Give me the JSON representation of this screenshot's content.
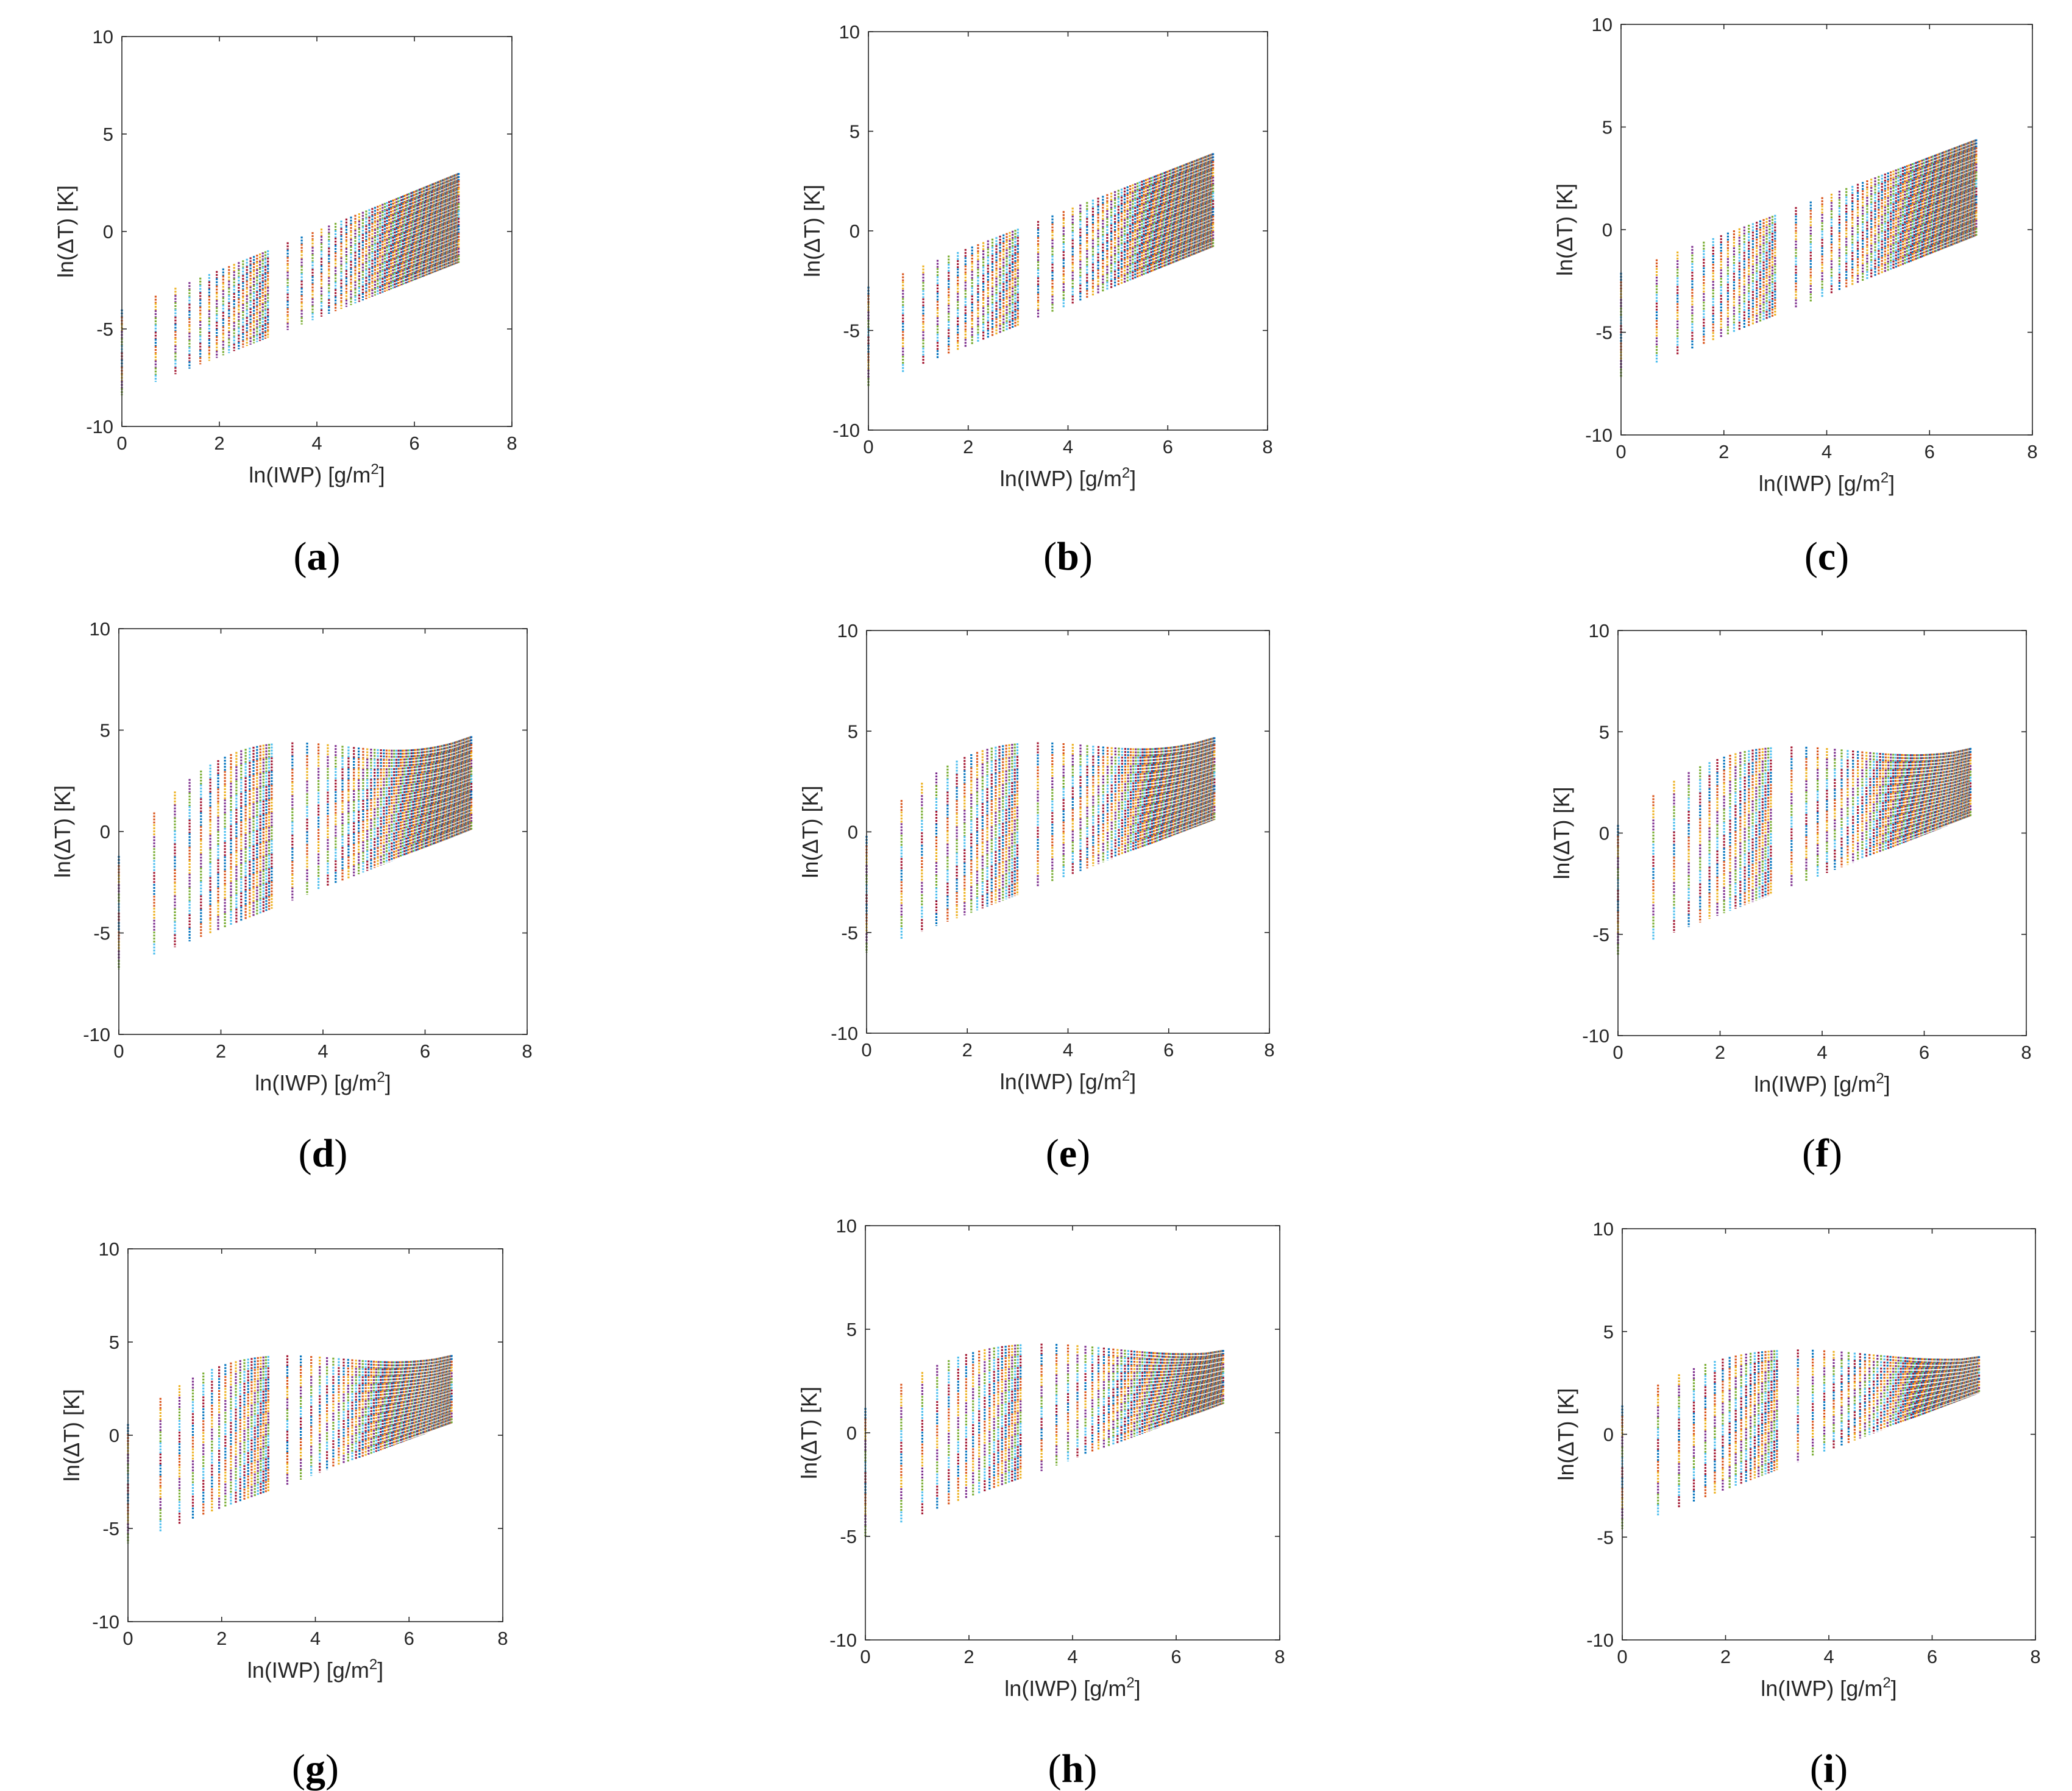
{
  "figure": {
    "palette": [
      "#0072BD",
      "#D95319",
      "#EDB120",
      "#7E2F8E",
      "#77AC30",
      "#4DBEEE",
      "#A2142F"
    ],
    "x_sample_points": [
      0.0,
      0.693,
      1.099,
      1.386,
      1.609,
      1.792,
      1.946,
      2.079,
      2.197,
      2.303,
      2.398,
      2.485,
      2.565,
      2.639,
      2.708,
      2.773,
      2.833,
      2.89,
      2.944,
      2.996,
      3.401,
      3.689,
      3.912,
      4.094,
      4.248,
      4.382,
      4.5,
      4.605,
      4.7,
      4.787,
      4.868,
      4.942,
      5.011,
      5.075,
      5.136,
      5.193,
      5.247,
      5.298,
      5.347,
      5.394,
      5.438,
      5.481,
      5.521,
      5.561,
      5.598,
      5.635,
      5.67,
      5.704,
      5.737,
      5.768,
      5.799,
      5.829,
      5.858,
      5.886,
      5.914,
      5.94,
      5.966,
      5.991,
      6.015,
      6.04,
      6.063,
      6.086,
      6.108,
      6.13,
      6.151,
      6.172,
      6.193,
      6.213,
      6.232,
      6.252,
      6.271,
      6.289,
      6.307,
      6.325,
      6.342,
      6.359,
      6.376,
      6.393,
      6.409,
      6.425,
      6.441,
      6.456,
      6.471,
      6.486,
      6.501,
      6.516,
      6.53,
      6.544,
      6.558,
      6.571,
      6.585,
      6.598,
      6.611,
      6.624,
      6.637,
      6.649,
      6.661,
      6.673,
      6.685,
      6.697,
      6.709,
      6.72,
      6.732,
      6.743,
      6.754,
      6.765,
      6.776,
      6.786,
      6.797,
      6.807,
      6.817,
      6.827,
      6.837,
      6.847,
      6.857,
      6.867,
      6.877,
      6.886,
      6.896,
      6.908
    ]
  },
  "chart_data": [
    {
      "id": "a",
      "type": "scatter",
      "caption_letter": "a",
      "xlabel": "ln(IWP) [g/m",
      "xlabel_sup": "2",
      "xlabel_end": "]",
      "ylabel": "ln(ΔT) [K]",
      "xlim": [
        0,
        8
      ],
      "ylim": [
        -10,
        10
      ],
      "x_ticks": [
        "0",
        "2",
        "4",
        "6",
        "8"
      ],
      "y_ticks": [
        "-10",
        "-5",
        "0",
        "5",
        "10"
      ],
      "envelope": {
        "lower_start": -8.4,
        "lower_end": -1.6,
        "upper_start": -4.0,
        "upper_end": 3.0,
        "upper_peak": null
      }
    },
    {
      "id": "b",
      "type": "scatter",
      "caption_letter": "b",
      "xlabel": "ln(IWP) [g/m",
      "xlabel_sup": "2",
      "xlabel_end": "]",
      "ylabel": "ln(ΔT) [K]",
      "xlim": [
        0,
        8
      ],
      "ylim": [
        -10,
        10
      ],
      "x_ticks": [
        "0",
        "2",
        "4",
        "6",
        "8"
      ],
      "y_ticks": [
        "-10",
        "-5",
        "0",
        "5",
        "10"
      ],
      "envelope": {
        "lower_start": -7.8,
        "lower_end": -0.8,
        "upper_start": -2.8,
        "upper_end": 3.9,
        "upper_peak": null
      }
    },
    {
      "id": "c",
      "type": "scatter",
      "caption_letter": "c",
      "xlabel": "ln(IWP) [g/m",
      "xlabel_sup": "2",
      "xlabel_end": "]",
      "ylabel": "ln(ΔT) [K]",
      "xlim": [
        0,
        8
      ],
      "ylim": [
        -10,
        10
      ],
      "x_ticks": [
        "0",
        "2",
        "4",
        "6",
        "8"
      ],
      "y_ticks": [
        "-10",
        "-5",
        "0",
        "5",
        "10"
      ],
      "envelope": {
        "lower_start": -7.2,
        "lower_end": -0.3,
        "upper_start": -2.1,
        "upper_end": 4.4,
        "upper_peak": null
      }
    },
    {
      "id": "d",
      "type": "scatter",
      "caption_letter": "d",
      "xlabel": "ln(IWP) [g/m",
      "xlabel_sup": "2",
      "xlabel_end": "]",
      "ylabel": "ln(ΔT) [K]",
      "xlim": [
        0,
        8
      ],
      "ylim": [
        -10,
        10
      ],
      "x_ticks": [
        "0",
        "2",
        "4",
        "6",
        "8"
      ],
      "y_ticks": [
        "-10",
        "-5",
        "0",
        "5",
        "10"
      ],
      "envelope": {
        "lower_start": -6.8,
        "lower_end": 0.1,
        "upper_start": -1.2,
        "upper_end": 4.7,
        "upper_peak": 4.7
      }
    },
    {
      "id": "e",
      "type": "scatter",
      "caption_letter": "e",
      "xlabel": "ln(IWP) [g/m",
      "xlabel_sup": "2",
      "xlabel_end": "]",
      "ylabel": "ln(ΔT) [K]",
      "xlim": [
        0,
        8
      ],
      "ylim": [
        -10,
        10
      ],
      "x_ticks": [
        "0",
        "2",
        "4",
        "6",
        "8"
      ],
      "y_ticks": [
        "-10",
        "-5",
        "0",
        "5",
        "10"
      ],
      "envelope": {
        "lower_start": -6.0,
        "lower_end": 0.6,
        "upper_start": -0.2,
        "upper_end": 4.7,
        "upper_peak": 4.7
      }
    },
    {
      "id": "f",
      "type": "scatter",
      "caption_letter": "f",
      "xlabel": "ln(IWP) [g/m",
      "xlabel_sup": "2",
      "xlabel_end": "]",
      "ylabel": "ln(ΔT) [K]",
      "xlim": [
        0,
        8
      ],
      "ylim": [
        -10,
        10
      ],
      "x_ticks": [
        "0",
        "2",
        "4",
        "6",
        "8"
      ],
      "y_ticks": [
        "-10",
        "-5",
        "0",
        "5",
        "10"
      ],
      "envelope": {
        "lower_start": -6.0,
        "lower_end": 0.8,
        "upper_start": 0.4,
        "upper_end": 4.2,
        "upper_peak": 4.5
      }
    },
    {
      "id": "g",
      "type": "scatter",
      "caption_letter": "g",
      "xlabel": "ln(IWP) [g/m",
      "xlabel_sup": "2",
      "xlabel_end": "]",
      "ylabel": "ln(ΔT) [K]",
      "xlim": [
        0,
        8
      ],
      "ylim": [
        -10,
        10
      ],
      "x_ticks": [
        "0",
        "2",
        "4",
        "6",
        "8"
      ],
      "y_ticks": [
        "-10",
        "-5",
        "0",
        "5",
        "10"
      ],
      "envelope": {
        "lower_start": -5.8,
        "lower_end": 0.6,
        "upper_start": 0.6,
        "upper_end": 4.3,
        "upper_peak": 4.5
      }
    },
    {
      "id": "h",
      "type": "scatter",
      "caption_letter": "h",
      "xlabel": "ln(IWP) [g/m",
      "xlabel_sup": "2",
      "xlabel_end": "]",
      "ylabel": "ln(ΔT) [K]",
      "xlim": [
        0,
        8
      ],
      "ylim": [
        -10,
        10
      ],
      "x_ticks": [
        "0",
        "2",
        "4",
        "6",
        "8"
      ],
      "y_ticks": [
        "-10",
        "-5",
        "0",
        "5",
        "10"
      ],
      "envelope": {
        "lower_start": -5.0,
        "lower_end": 1.4,
        "upper_start": 1.2,
        "upper_end": 4.0,
        "upper_peak": 4.5
      }
    },
    {
      "id": "i",
      "type": "scatter",
      "caption_letter": "i",
      "xlabel": "ln(IWP) [g/m",
      "xlabel_sup": "2",
      "xlabel_end": "]",
      "ylabel": "ln(ΔT) [K]",
      "xlim": [
        0,
        8
      ],
      "ylim": [
        -10,
        10
      ],
      "x_ticks": [
        "0",
        "2",
        "4",
        "6",
        "8"
      ],
      "y_ticks": [
        "-10",
        "-5",
        "0",
        "5",
        "10"
      ],
      "envelope": {
        "lower_start": -4.6,
        "lower_end": 2.0,
        "upper_start": 1.4,
        "upper_end": 3.8,
        "upper_peak": 4.3
      }
    }
  ]
}
